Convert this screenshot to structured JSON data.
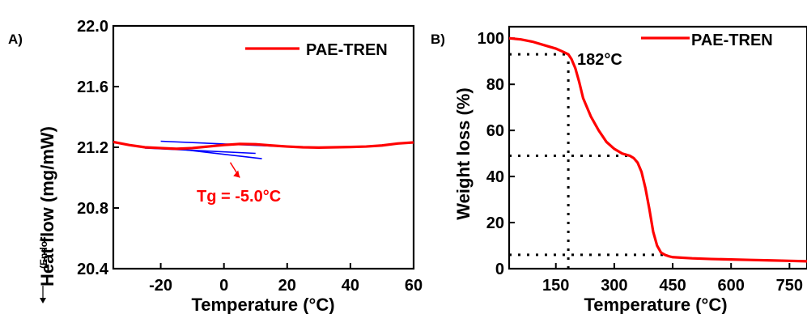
{
  "colors": {
    "series": "#ff0000",
    "tangent": "#0000ff",
    "annotation": "#ff0000",
    "axis": "#000000"
  },
  "chart_data": [
    {
      "type": "line",
      "panel_label": "A)",
      "xlabel": "Temperature (°C)",
      "ylabel": "Heat flow (mg/mW)",
      "ylabel_prefix": "(Endo)",
      "xlim": [
        -35,
        60
      ],
      "ylim": [
        20.4,
        22.0
      ],
      "xticks": [
        -20,
        0,
        20,
        40,
        60
      ],
      "yticks": [
        "20.4",
        "20.8",
        "21.2",
        "21.6",
        "22.0"
      ],
      "legend": {
        "label": "PAE-TREN",
        "position": "top-right"
      },
      "series": [
        {
          "name": "PAE-TREN",
          "x": [
            -35,
            -30,
            -25,
            -20,
            -15,
            -10,
            -5,
            0,
            5,
            10,
            15,
            20,
            25,
            30,
            35,
            40,
            45,
            50,
            55,
            60
          ],
          "y": [
            21.235,
            21.215,
            21.2,
            21.195,
            21.19,
            21.195,
            21.205,
            21.215,
            21.222,
            21.22,
            21.212,
            21.205,
            21.2,
            21.198,
            21.2,
            21.202,
            21.205,
            21.212,
            21.225,
            21.232
          ]
        }
      ],
      "tangent_lines": [
        {
          "x": [
            -20,
            30
          ],
          "y": [
            21.24,
            21.195
          ]
        },
        {
          "x": [
            -25,
            10
          ],
          "y": [
            21.195,
            21.16
          ]
        },
        {
          "x": [
            -15,
            12
          ],
          "y": [
            21.19,
            21.125
          ]
        }
      ],
      "annotation": {
        "text": "Tg = -5.0°C",
        "arrow_from": [
          2,
          21.1
        ],
        "arrow_to": [
          5,
          21.0
        ]
      }
    },
    {
      "type": "line",
      "panel_label": "B)",
      "xlabel": "Temperature (°C)",
      "ylabel": "Weight loss (%)",
      "xlim": [
        30,
        795
      ],
      "ylim": [
        0,
        105
      ],
      "xticks": [
        150,
        300,
        450,
        600,
        750
      ],
      "yticks": [
        0,
        20,
        40,
        60,
        80,
        100
      ],
      "legend": {
        "label": "PAE-TREN",
        "position": "top-right"
      },
      "series": [
        {
          "name": "PAE-TREN",
          "x": [
            30,
            60,
            90,
            120,
            150,
            170,
            182,
            190,
            200,
            210,
            220,
            240,
            260,
            280,
            300,
            320,
            340,
            350,
            360,
            370,
            380,
            390,
            400,
            410,
            420,
            430,
            440,
            450,
            500,
            550,
            600,
            650,
            700,
            750,
            795
          ],
          "y": [
            100,
            99.5,
            98.5,
            97,
            95.5,
            94,
            93,
            91,
            87,
            81,
            74,
            66,
            60,
            55,
            52,
            50,
            49,
            48,
            46,
            42,
            35,
            26,
            16,
            10,
            7,
            6,
            5.4,
            5,
            4.5,
            4.2,
            4,
            3.8,
            3.6,
            3.4,
            3.2
          ]
        }
      ],
      "guide_lines": [
        {
          "orientation": "horizontal",
          "y": 93,
          "x_to": 182
        },
        {
          "orientation": "horizontal",
          "y": 49,
          "x_to": 350
        },
        {
          "orientation": "horizontal",
          "y": 6,
          "x_to": 430
        },
        {
          "orientation": "vertical",
          "x": 182,
          "y_to": 93
        }
      ],
      "annotation": {
        "text": "182°C"
      }
    }
  ]
}
